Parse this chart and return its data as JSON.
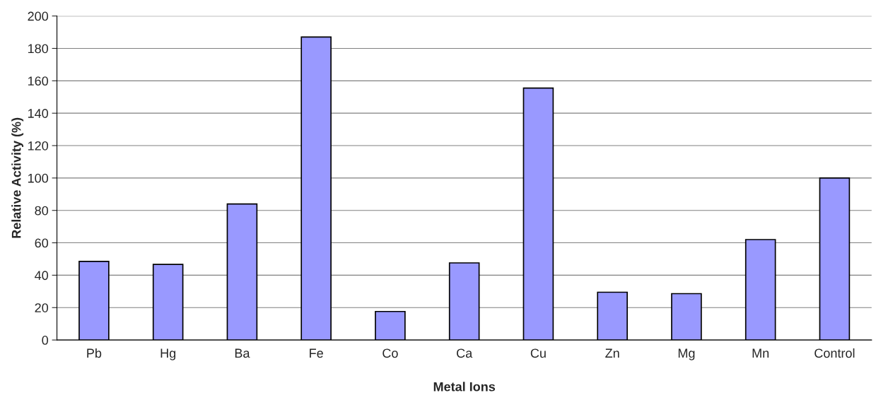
{
  "chart_data": {
    "type": "bar",
    "xlabel": "Metal Ions",
    "ylabel": "Relative Activity (%)",
    "categories": [
      "Pb",
      "Hg",
      "Ba",
      "Fe",
      "Co",
      "Ca",
      "Cu",
      "Zn",
      "Mg",
      "Mn",
      "Control"
    ],
    "values": [
      48.5,
      46.7,
      84,
      187,
      17.6,
      47.6,
      155.5,
      29.5,
      28.6,
      62,
      100
    ],
    "color": "#9999ff",
    "ylim": [
      0,
      200
    ],
    "yticks": [
      0,
      20,
      40,
      60,
      80,
      100,
      120,
      140,
      160,
      180,
      200
    ],
    "grid": "y",
    "legend": false
  }
}
